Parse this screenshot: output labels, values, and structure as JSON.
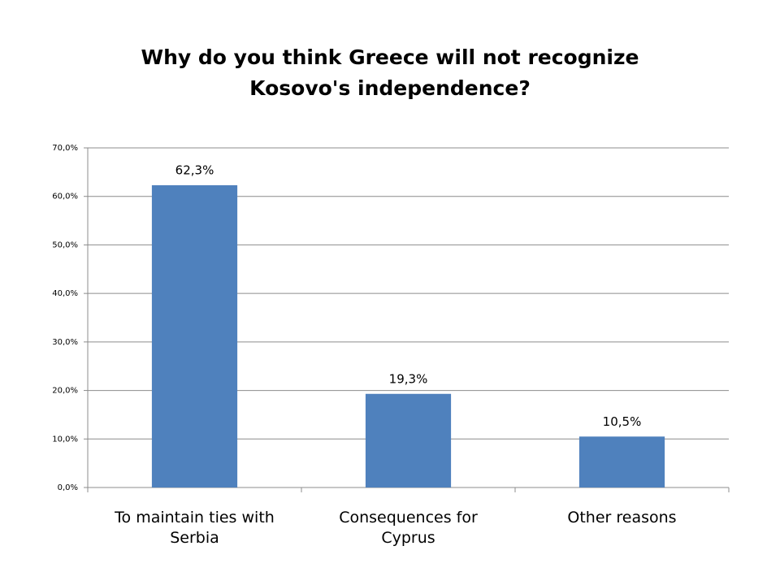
{
  "chart_data": {
    "type": "bar",
    "title": "Why do you think Greece will not recognize Kosovo's independence?",
    "categories": [
      "To maintain ties with Serbia",
      "Consequences for Cyprus",
      "Other reasons"
    ],
    "values": [
      62.3,
      19.3,
      10.5
    ],
    "value_labels": [
      "62,3%",
      "19,3%",
      "10,5%"
    ],
    "color": "#4f81bd",
    "ylim": [
      0,
      70
    ],
    "yticks": [
      {
        "value": 0,
        "label": "0,0%"
      },
      {
        "value": 10,
        "label": "10,0%"
      },
      {
        "value": 20,
        "label": "20,0%"
      },
      {
        "value": 30,
        "label": "30,0%"
      },
      {
        "value": 40,
        "label": "40,0%"
      },
      {
        "value": 50,
        "label": "50,0%"
      },
      {
        "value": 60,
        "label": "60,0%"
      },
      {
        "value": 70,
        "label": "70,0%"
      }
    ],
    "grid": true
  }
}
